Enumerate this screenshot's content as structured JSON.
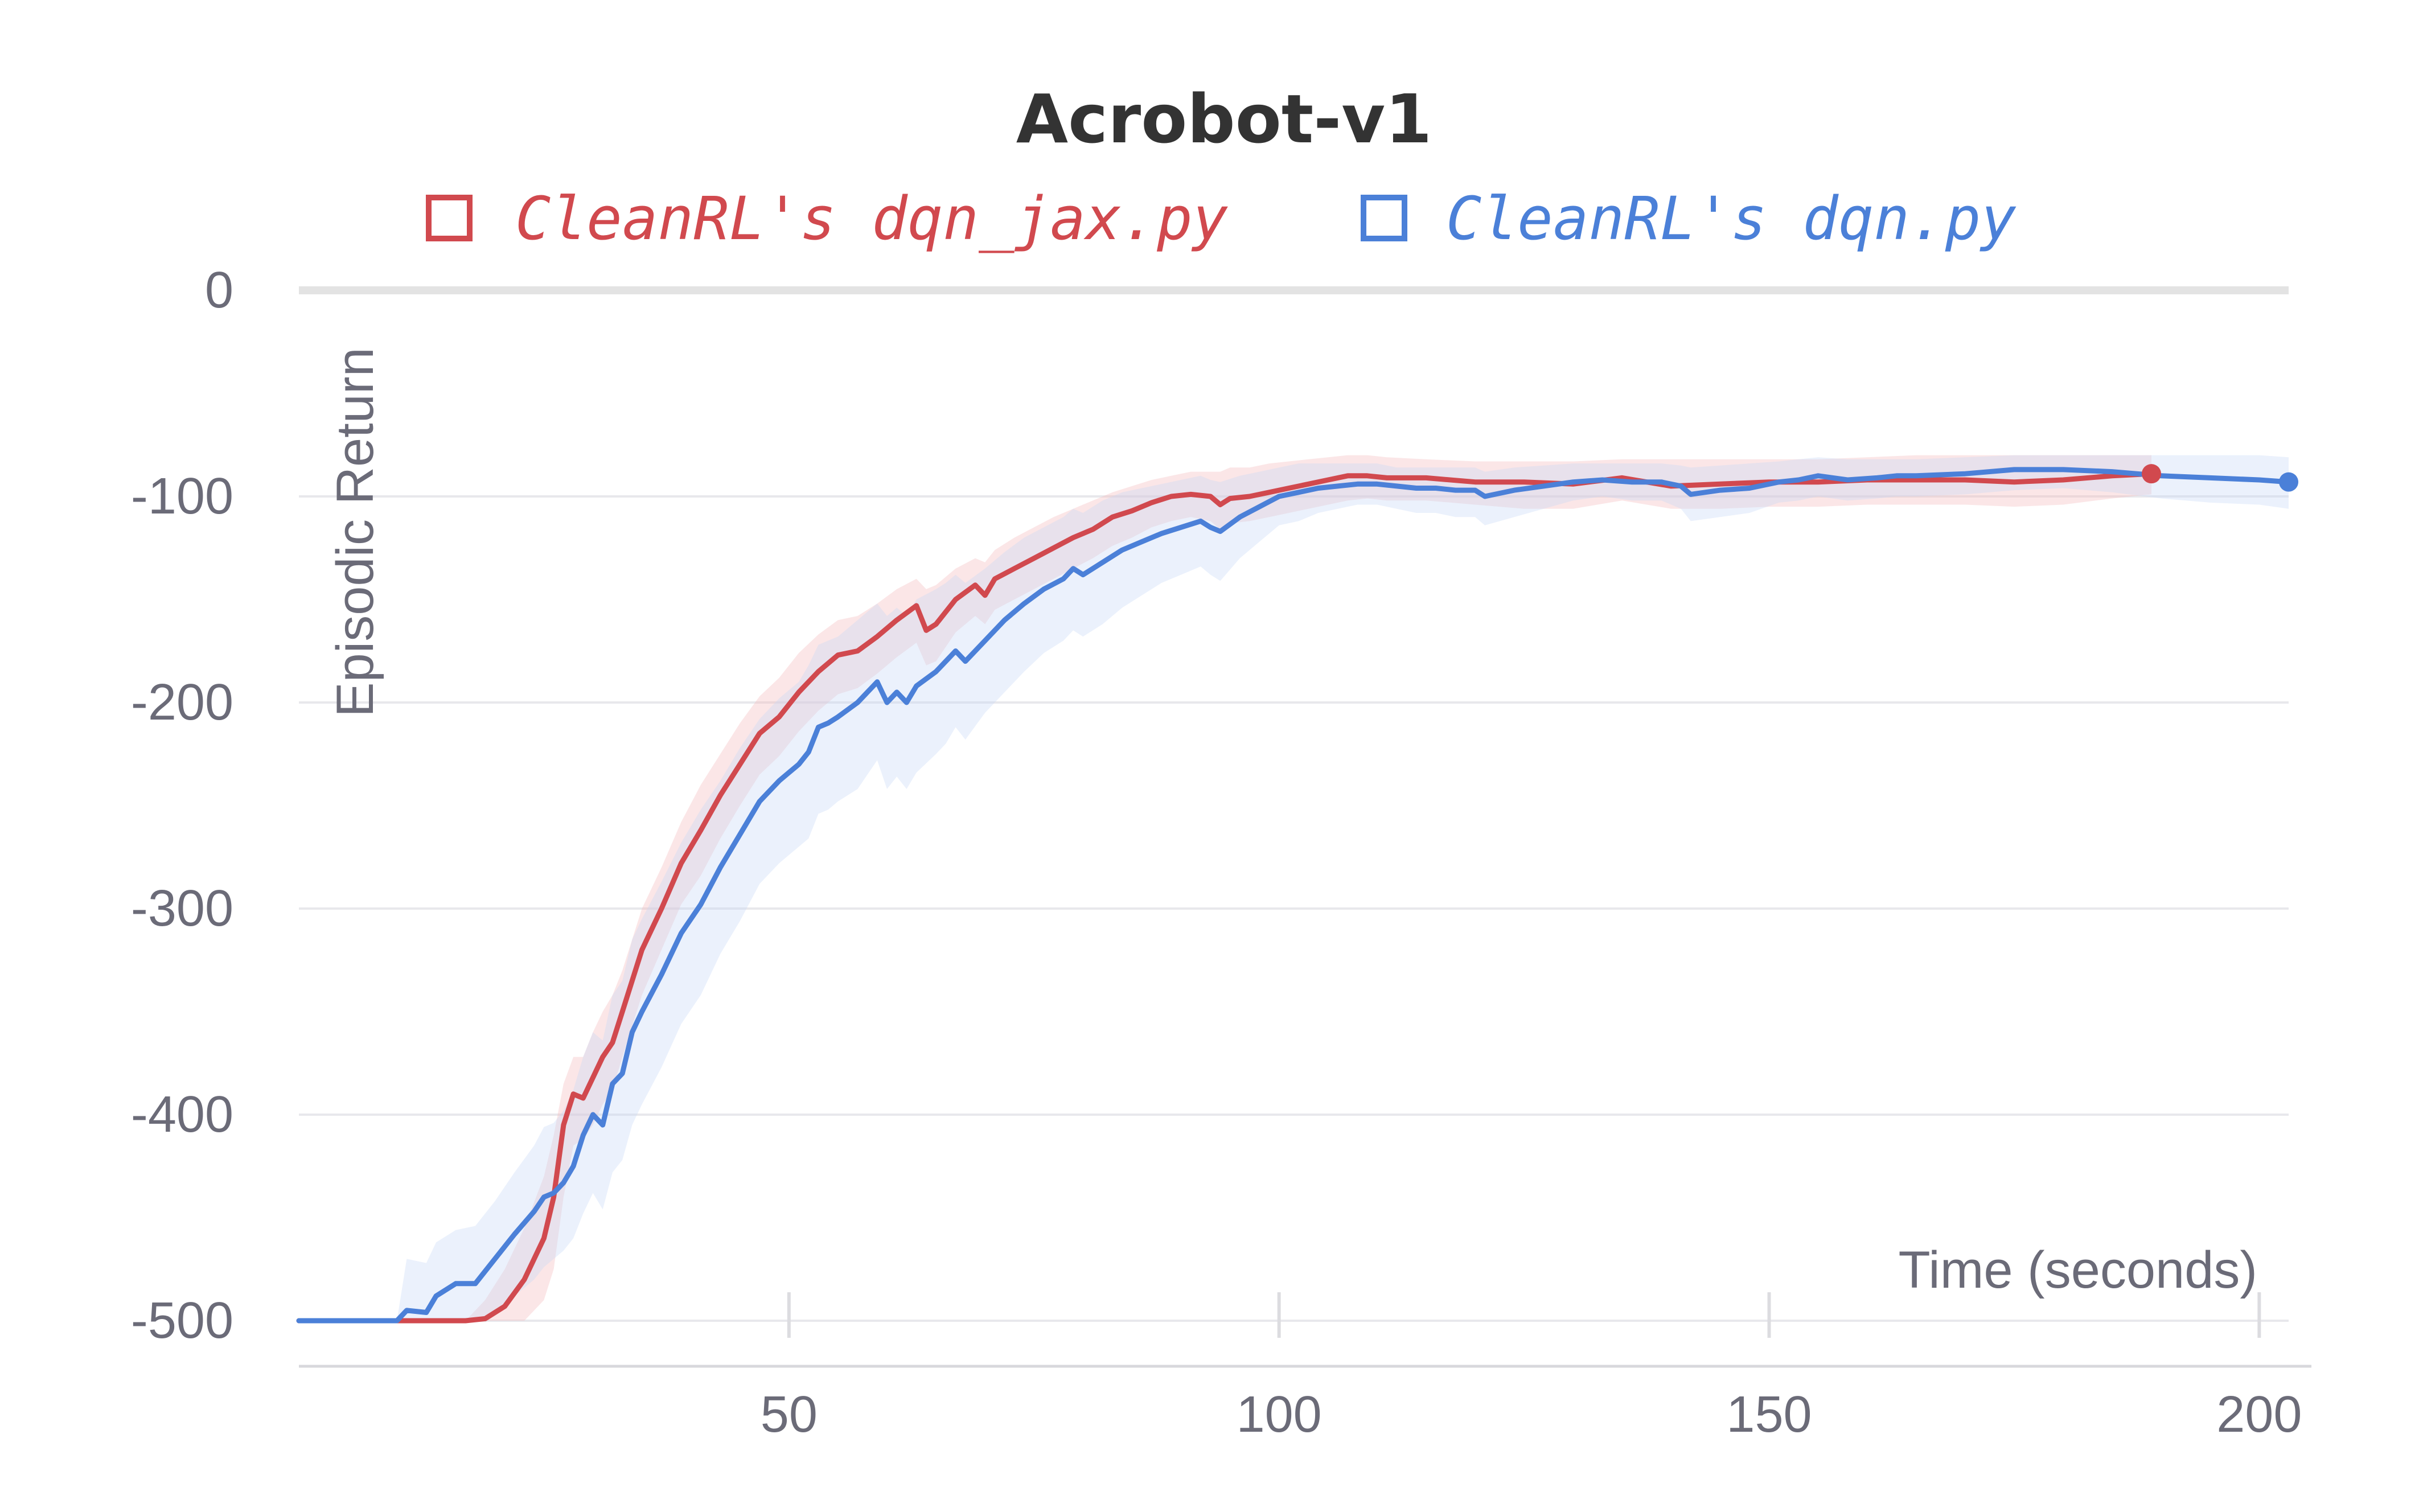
{
  "chart_data": {
    "type": "line",
    "title": "Acrobot-v1",
    "xlabel": "Time (seconds)",
    "ylabel": "Episodic Return",
    "xlim": [
      0,
      203
    ],
    "ylim": [
      -500,
      0
    ],
    "xticks": [
      50,
      100,
      150,
      200
    ],
    "yticks": [
      0,
      -100,
      -200,
      -300,
      -400,
      -500
    ],
    "grid": true,
    "legend_position": "top",
    "series": [
      {
        "name": "CleanRL's dqn_jax.py",
        "color": "#d1494e",
        "band_color": "#f3b7b9",
        "x": [
          0,
          10,
          15,
          17,
          19,
          21,
          23,
          25,
          26,
          27,
          28,
          29,
          30,
          31,
          32,
          33,
          34,
          35,
          37,
          39,
          41,
          43,
          45,
          47,
          49,
          51,
          53,
          55,
          57,
          59,
          61,
          63,
          64,
          65,
          67,
          69,
          70,
          71,
          73,
          75,
          77,
          79,
          81,
          83,
          85,
          87,
          89,
          91,
          93,
          94,
          95,
          97,
          99,
          101,
          103,
          105,
          107,
          109,
          111,
          115,
          120,
          125,
          130,
          135,
          140,
          145,
          150,
          155,
          160,
          165,
          170,
          175,
          180,
          185,
          189
        ],
        "y": [
          -500,
          -500,
          -500,
          -500,
          -499,
          -493,
          -480,
          -460,
          -440,
          -405,
          -390,
          -392,
          -382,
          -372,
          -365,
          -350,
          -335,
          -320,
          -300,
          -278,
          -262,
          -245,
          -230,
          -215,
          -207,
          -195,
          -185,
          -177,
          -175,
          -168,
          -160,
          -153,
          -165,
          -162,
          -150,
          -143,
          -148,
          -140,
          -135,
          -130,
          -125,
          -120,
          -116,
          -110,
          -107,
          -103,
          -100,
          -99,
          -100,
          -104,
          -101,
          -100,
          -98,
          -96,
          -94,
          -92,
          -90,
          -90,
          -91,
          -91,
          -93,
          -93,
          -94,
          -91,
          -95,
          -94,
          -93,
          -93,
          -92,
          -92,
          -92,
          -93,
          -92,
          -90,
          -89
        ],
        "upper": [
          -500,
          -500,
          -500,
          -500,
          -490,
          -475,
          -455,
          -430,
          -410,
          -385,
          -372,
          -372,
          -360,
          -350,
          -342,
          -330,
          -315,
          -300,
          -280,
          -258,
          -240,
          -225,
          -210,
          -197,
          -188,
          -176,
          -167,
          -160,
          -158,
          -152,
          -145,
          -140,
          -145,
          -143,
          -135,
          -130,
          -132,
          -126,
          -120,
          -115,
          -110,
          -106,
          -102,
          -98,
          -95,
          -92,
          -90,
          -88,
          -88,
          -88,
          -86,
          -86,
          -84,
          -83,
          -82,
          -81,
          -80,
          -80,
          -81,
          -82,
          -83,
          -83,
          -83,
          -82,
          -82,
          -82,
          -82,
          -82,
          -81,
          -80,
          -80,
          -80,
          -80,
          -80,
          -80
        ],
        "lower": [
          -500,
          -500,
          -500,
          -500,
          -500,
          -500,
          -500,
          -490,
          -475,
          -440,
          -415,
          -412,
          -405,
          -395,
          -388,
          -372,
          -357,
          -342,
          -320,
          -298,
          -284,
          -266,
          -250,
          -235,
          -226,
          -214,
          -204,
          -196,
          -193,
          -186,
          -178,
          -171,
          -182,
          -180,
          -166,
          -158,
          -162,
          -155,
          -150,
          -145,
          -140,
          -135,
          -130,
          -124,
          -120,
          -115,
          -112,
          -110,
          -112,
          -116,
          -113,
          -112,
          -110,
          -108,
          -106,
          -104,
          -102,
          -101,
          -102,
          -102,
          -104,
          -106,
          -106,
          -102,
          -106,
          -106,
          -105,
          -105,
          -104,
          -104,
          -104,
          -105,
          -104,
          -101,
          -99
        ]
      },
      {
        "name": "CleanRL's dqn.py",
        "color": "#4b80d8",
        "band_color": "#c6d8f5",
        "x": [
          0,
          10,
          11,
          13,
          14,
          16,
          18,
          20,
          22,
          24,
          25,
          26,
          27,
          28,
          29,
          30,
          31,
          32,
          33,
          34,
          35,
          37,
          39,
          41,
          43,
          45,
          47,
          49,
          50,
          51,
          52,
          53,
          54,
          55,
          57,
          59,
          60,
          61,
          62,
          63,
          65,
          66,
          67,
          68,
          70,
          72,
          74,
          76,
          78,
          79,
          80,
          82,
          84,
          86,
          88,
          90,
          92,
          93,
          94,
          96,
          98,
          100,
          102,
          104,
          106,
          108,
          110,
          112,
          114,
          116,
          118,
          120,
          121,
          124,
          127,
          130,
          133,
          136,
          139,
          141,
          142,
          145,
          148,
          151,
          153,
          155,
          158,
          161,
          163,
          165,
          170,
          175,
          180,
          185,
          190,
          195,
          200,
          203
        ],
        "y": [
          -500,
          -500,
          -495,
          -496,
          -488,
          -482,
          -482,
          -470,
          -458,
          -447,
          -440,
          -438,
          -433,
          -425,
          -410,
          -400,
          -405,
          -385,
          -380,
          -360,
          -350,
          -332,
          -312,
          -298,
          -280,
          -264,
          -248,
          -238,
          -234,
          -230,
          -224,
          -212,
          -210,
          -207,
          -200,
          -190,
          -200,
          -195,
          -200,
          -192,
          -185,
          -180,
          -175,
          -180,
          -170,
          -160,
          -152,
          -145,
          -140,
          -135,
          -138,
          -132,
          -126,
          -122,
          -118,
          -115,
          -112,
          -115,
          -117,
          -110,
          -105,
          -100,
          -98,
          -96,
          -95,
          -94,
          -94,
          -95,
          -96,
          -96,
          -97,
          -97,
          -100,
          -97,
          -95,
          -93,
          -92,
          -93,
          -93,
          -95,
          -99,
          -97,
          -96,
          -93,
          -92,
          -90,
          -92,
          -91,
          -90,
          -90,
          -89,
          -87,
          -87,
          -88,
          -90,
          -91,
          -92,
          -93
        ],
        "upper": [
          -500,
          -500,
          -470,
          -472,
          -462,
          -456,
          -454,
          -442,
          -428,
          -415,
          -406,
          -404,
          -398,
          -388,
          -372,
          -360,
          -364,
          -342,
          -335,
          -315,
          -305,
          -287,
          -268,
          -252,
          -238,
          -222,
          -208,
          -198,
          -194,
          -190,
          -182,
          -172,
          -170,
          -168,
          -160,
          -152,
          -158,
          -154,
          -158,
          -150,
          -145,
          -142,
          -138,
          -142,
          -135,
          -127,
          -120,
          -115,
          -110,
          -106,
          -108,
          -102,
          -98,
          -96,
          -94,
          -92,
          -90,
          -92,
          -93,
          -90,
          -88,
          -86,
          -84,
          -84,
          -84,
          -84,
          -84,
          -86,
          -86,
          -86,
          -86,
          -86,
          -88,
          -86,
          -85,
          -84,
          -84,
          -84,
          -84,
          -85,
          -86,
          -85,
          -84,
          -83,
          -82,
          -81,
          -82,
          -82,
          -82,
          -82,
          -81,
          -80,
          -80,
          -80,
          -80,
          -80,
          -80,
          -81
        ],
        "lower": [
          -500,
          -500,
          -500,
          -500,
          -500,
          -500,
          -500,
          -495,
          -488,
          -480,
          -474,
          -470,
          -466,
          -460,
          -448,
          -438,
          -446,
          -428,
          -422,
          -405,
          -395,
          -377,
          -356,
          -342,
          -322,
          -306,
          -288,
          -278,
          -274,
          -270,
          -266,
          -254,
          -252,
          -248,
          -242,
          -228,
          -242,
          -236,
          -242,
          -234,
          -225,
          -220,
          -212,
          -218,
          -205,
          -195,
          -185,
          -176,
          -170,
          -165,
          -168,
          -162,
          -154,
          -148,
          -142,
          -138,
          -134,
          -138,
          -141,
          -130,
          -122,
          -114,
          -112,
          -108,
          -106,
          -104,
          -104,
          -106,
          -108,
          -108,
          -110,
          -110,
          -114,
          -110,
          -106,
          -102,
          -100,
          -102,
          -102,
          -106,
          -112,
          -110,
          -108,
          -103,
          -102,
          -100,
          -102,
          -101,
          -100,
          -100,
          -99,
          -97,
          -96,
          -98,
          -101,
          -103,
          -104,
          -106
        ]
      }
    ]
  }
}
